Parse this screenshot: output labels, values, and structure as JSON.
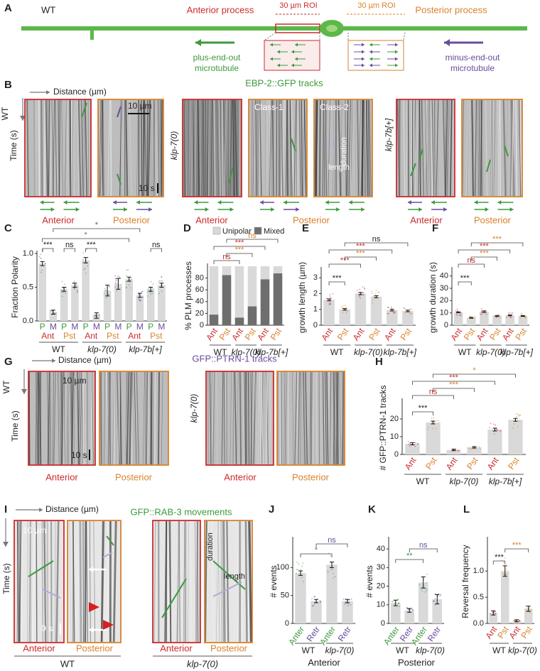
{
  "panel_labels": [
    "A",
    "B",
    "C",
    "D",
    "E",
    "F",
    "G",
    "H",
    "I",
    "J",
    "K",
    "L"
  ],
  "diagram": {
    "strain": "WT",
    "anterior": "Anterior process",
    "posterior": "Posterior process",
    "roi": [
      "30 µm ROI",
      "30 µm ROI"
    ],
    "plus": [
      "plus-end-out",
      "microtubule"
    ],
    "minus": [
      "minus-end-out",
      "microtubule"
    ]
  },
  "panel_b": {
    "title": "EBP-2::GFP tracks",
    "distance": "Distance (µm)",
    "time": "Time (s)",
    "strains": [
      "WT",
      "klp-7(0)",
      "klp-7b[+]"
    ],
    "scale_distance": "10 µm",
    "scale_time": "10 s",
    "class_labels": [
      "Class-1",
      "Class-2"
    ],
    "track_labels": [
      "duration",
      "length"
    ],
    "regions": [
      "Anterior",
      "Posterior",
      "Anterior",
      "Posterior",
      "Anterior",
      "Posterior"
    ]
  },
  "panel_g": {
    "title": "GFP::PTRN-1 tracks",
    "distance": "Distance (µm)",
    "time": "Time (s)",
    "strains": [
      "WT",
      "klp-7(0)"
    ],
    "scale_distance": "10 µm",
    "scale_time": "10 s",
    "regions": [
      "Anterior",
      "Posterior",
      "Anterior",
      "Posterior"
    ]
  },
  "panel_i": {
    "title": "GFP::RAB-3 movements",
    "distance": "Distance (µm)",
    "time": "Time (s)",
    "strains": [
      "WT",
      "klp-7(0)"
    ],
    "scale_distance": "10 µm",
    "scale_time": "0 s",
    "track_labels": [
      "duration",
      "length"
    ],
    "regions": [
      "Anterior",
      "Posterior",
      "Anterior",
      "Posterior"
    ]
  },
  "chart_data": [
    {
      "type": "bar",
      "ylabel": "Fraction Polarity",
      "categories": [
        "P",
        "M",
        "P",
        "M",
        "P",
        "M",
        "P",
        "M",
        "P",
        "M",
        "P",
        "M"
      ],
      "category_colors": [
        "#3c9a3c",
        "#6a4c9c",
        "#3c9a3c",
        "#6a4c9c",
        "#3c9a3c",
        "#6a4c9c",
        "#3c9a3c",
        "#6a4c9c",
        "#3c9a3c",
        "#6a4c9c",
        "#3c9a3c",
        "#6a4c9c"
      ],
      "subgroups": [
        "Ant",
        "Pst",
        "Ant",
        "Pst",
        "Ant",
        "Pst"
      ],
      "subgroup_colors": [
        "#cc2b2b",
        "#d9822b",
        "#cc2b2b",
        "#d9822b",
        "#cc2b2b",
        "#d9822b"
      ],
      "groups": [
        "WT",
        "klp-7(0)",
        "klp-7b[+]"
      ],
      "values": [
        0.85,
        0.13,
        0.47,
        0.53,
        0.9,
        0.08,
        0.45,
        0.55,
        0.62,
        0.38,
        0.47,
        0.53
      ],
      "errors": [
        0.03,
        0.03,
        0.03,
        0.03,
        0.04,
        0.04,
        0.08,
        0.08,
        0.03,
        0.03,
        0.03,
        0.03
      ],
      "ylim": [
        0,
        1
      ],
      "yticks": [
        {
          "value": 0,
          "label": "0.0"
        },
        {
          "value": 0.5,
          "label": "0.5"
        },
        {
          "value": 1,
          "label": "1.0"
        }
      ],
      "significance": [
        {
          "label": "***",
          "color": "#222222"
        },
        {
          "label": "ns",
          "color": "#222222"
        },
        {
          "label": "***",
          "color": "#222222"
        },
        {
          "label": "*",
          "color": "#3c9a3c"
        },
        {
          "label": "*",
          "color": "#6a4c9c"
        },
        {
          "label": "ns",
          "color": "#222222"
        }
      ]
    },
    {
      "type": "stacked_bar",
      "ylabel": "% PLM processes",
      "categories": [
        "Ant",
        "Pst",
        "Ant",
        "Pst",
        "Ant",
        "Pst"
      ],
      "category_colors": [
        "#cc2b2b",
        "#d9822b",
        "#cc2b2b",
        "#d9822b",
        "#cc2b2b",
        "#d9822b"
      ],
      "groups": [
        "WT",
        "klp-7(0)",
        "klp-7b[+]"
      ],
      "series": [
        {
          "name": "Unipolar",
          "color": "#d9d9d9",
          "values": [
            82,
            15,
            87,
            68,
            22,
            12
          ]
        },
        {
          "name": "Mixed",
          "color": "#6e6e6e",
          "values": [
            18,
            85,
            13,
            32,
            78,
            88
          ]
        }
      ],
      "ylim": [
        0,
        100
      ],
      "yticks": [
        0,
        20,
        40,
        60,
        80
      ],
      "legend": "top",
      "significance": [
        {
          "label": "ns",
          "color": "#cc2b2b"
        },
        {
          "label": "***",
          "color": "#d9822b"
        },
        {
          "label": "***",
          "color": "#cc2b2b"
        },
        {
          "label": "ns",
          "color": "#d9822b"
        }
      ]
    },
    {
      "type": "bar",
      "ylabel": "growth length (µm)",
      "categories": [
        "Ant",
        "Pst",
        "Ant",
        "Pst",
        "Ant",
        "Pst"
      ],
      "category_colors": [
        "#cc2b2b",
        "#d9822b",
        "#cc2b2b",
        "#d9822b",
        "#cc2b2b",
        "#d9822b"
      ],
      "groups": [
        "WT",
        "klp-7(0)",
        "klp-7b[+]"
      ],
      "values": [
        1.6,
        1.0,
        2.0,
        1.8,
        0.95,
        0.9
      ],
      "errors": [
        0.06,
        0.05,
        0.07,
        0.06,
        0.05,
        0.05
      ],
      "ylim": [
        0,
        3.5
      ],
      "yticks": [
        0,
        1,
        2,
        3
      ],
      "significance": [
        {
          "label": "***",
          "color": "#222222"
        },
        {
          "label": "***",
          "color": "#cc2b2b"
        },
        {
          "label": "***",
          "color": "#d9822b"
        },
        {
          "label": "***",
          "color": "#cc2b2b"
        },
        {
          "label": "ns",
          "color": "#222222"
        }
      ]
    },
    {
      "type": "bar",
      "ylabel": "growth duration (s)",
      "categories": [
        "Ant",
        "Pst",
        "Ant",
        "Pst",
        "Ant",
        "Pst"
      ],
      "category_colors": [
        "#cc2b2b",
        "#d9822b",
        "#cc2b2b",
        "#d9822b",
        "#cc2b2b",
        "#d9822b"
      ],
      "groups": [
        "WT",
        "klp-7(0)",
        "klp-7b[+]"
      ],
      "values": [
        10.5,
        6,
        11,
        7.5,
        8,
        7.5
      ],
      "errors": [
        0.4,
        0.3,
        0.6,
        0.4,
        0.3,
        0.3
      ],
      "ylim": [
        0,
        45
      ],
      "yticks": [
        0,
        10,
        20,
        30,
        40
      ],
      "significance": [
        {
          "label": "***",
          "color": "#222222"
        },
        {
          "label": "ns",
          "color": "#cc2b2b"
        },
        {
          "label": "***",
          "color": "#d9822b"
        },
        {
          "label": "***",
          "color": "#cc2b2b"
        },
        {
          "label": "***",
          "color": "#d9822b"
        }
      ]
    },
    {
      "type": "bar",
      "ylabel": "# GFP::PTRN-1 tracks",
      "categories": [
        "Ant",
        "Pst",
        "Ant",
        "Pst",
        "Ant",
        "Pst"
      ],
      "category_colors": [
        "#cc2b2b",
        "#d9822b",
        "#cc2b2b",
        "#d9822b",
        "#cc2b2b",
        "#d9822b"
      ],
      "groups": [
        "WT",
        "klp-7(0)",
        "klp-7b[+]"
      ],
      "values": [
        6,
        18,
        2.5,
        4,
        14,
        19.5
      ],
      "errors": [
        0.6,
        0.8,
        0.4,
        0.4,
        0.8,
        0.8
      ],
      "ylim": [
        0,
        30
      ],
      "yticks": [
        0,
        10,
        20
      ],
      "significance": [
        {
          "label": "***",
          "color": "#222222"
        },
        {
          "label": "ns",
          "color": "#cc2b2b"
        },
        {
          "label": "***",
          "color": "#d9822b"
        },
        {
          "label": "***",
          "color": "#cc2b2b"
        },
        {
          "label": "*",
          "color": "#d9822b"
        }
      ]
    },
    {
      "type": "bar",
      "ylabel": "# events",
      "categories": [
        "Anter",
        "Retr",
        "Anter",
        "Retr"
      ],
      "category_colors": [
        "#3c9a3c",
        "#6a4c9c",
        "#3c9a3c",
        "#6a4c9c"
      ],
      "groups": [
        "WT",
        "klp-7(0)"
      ],
      "footer": "Anterior",
      "values": [
        90,
        40,
        105,
        40
      ],
      "errors": [
        4,
        3,
        5,
        3
      ],
      "ylim": [
        0,
        150
      ],
      "yticks": [
        0,
        50,
        100
      ],
      "significance": [
        {
          "label": "*",
          "color": "#3c9a3c"
        },
        {
          "label": "ns",
          "color": "#6a4c9c"
        }
      ]
    },
    {
      "type": "bar",
      "ylabel": "# events",
      "categories": [
        "Anter",
        "Retr",
        "Anter",
        "Retr"
      ],
      "category_colors": [
        "#3c9a3c",
        "#6a4c9c",
        "#3c9a3c",
        "#6a4c9c"
      ],
      "groups": [
        "WT",
        "klp-7(0)"
      ],
      "footer": "Posterior",
      "values": [
        11,
        7,
        22,
        13
      ],
      "errors": [
        1.5,
        1,
        3,
        2.5
      ],
      "ylim": [
        0,
        45
      ],
      "yticks": [
        0,
        10,
        20,
        30,
        40
      ],
      "significance": [
        {
          "label": "**",
          "color": "#3c9a3c"
        },
        {
          "label": "ns",
          "color": "#6a4c9c"
        }
      ]
    },
    {
      "type": "bar",
      "ylabel": "Reversal frequency",
      "categories": [
        "Ant",
        "Pst",
        "Ant",
        "Pst"
      ],
      "category_colors": [
        "#cc2b2b",
        "#d9822b",
        "#cc2b2b",
        "#d9822b"
      ],
      "groups": [
        "WT",
        "klp-7(0)"
      ],
      "values": [
        0.2,
        1.0,
        0.05,
        0.28
      ],
      "errors": [
        0.04,
        0.1,
        0.02,
        0.05
      ],
      "ylim": [
        0,
        1.6
      ],
      "yticks": [
        {
          "value": 0,
          "label": "0.0"
        },
        {
          "value": 0.5,
          "label": "0.5"
        },
        {
          "value": 1,
          "label": "1.0"
        }
      ],
      "significance": [
        {
          "label": "***",
          "color": "#222222"
        },
        {
          "label": "***",
          "color": "#d9822b"
        }
      ]
    }
  ]
}
